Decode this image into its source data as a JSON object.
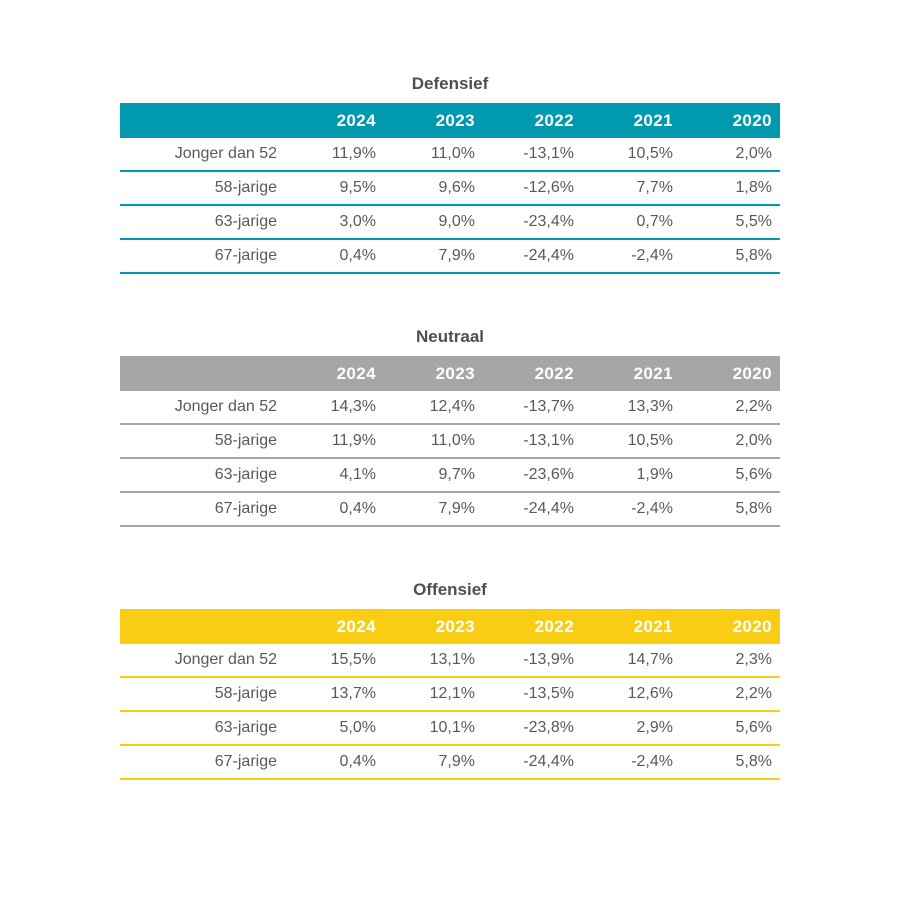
{
  "page": {
    "background_color": "#ffffff",
    "text_color": "#58595b",
    "header_text_color": "#ffffff"
  },
  "columns": [
    "2024",
    "2023",
    "2022",
    "2021",
    "2020"
  ],
  "tables": [
    {
      "title": "Defensief",
      "accent": "#0099ad",
      "rows": [
        {
          "label": "Jonger dan 52",
          "values": [
            "11,9%",
            "11,0%",
            "-13,1%",
            "10,5%",
            "2,0%"
          ]
        },
        {
          "label": "58-jarige",
          "values": [
            "9,5%",
            "9,6%",
            "-12,6%",
            "7,7%",
            "1,8%"
          ]
        },
        {
          "label": "63-jarige",
          "values": [
            "3,0%",
            "9,0%",
            "-23,4%",
            "0,7%",
            "5,5%"
          ]
        },
        {
          "label": "67-jarige",
          "values": [
            "0,4%",
            "7,9%",
            "-24,4%",
            "-2,4%",
            "5,8%"
          ]
        }
      ]
    },
    {
      "title": "Neutraal",
      "accent": "#a6a6a6",
      "rows": [
        {
          "label": "Jonger dan 52",
          "values": [
            "14,3%",
            "12,4%",
            "-13,7%",
            "13,3%",
            "2,2%"
          ]
        },
        {
          "label": "58-jarige",
          "values": [
            "11,9%",
            "11,0%",
            "-13,1%",
            "10,5%",
            "2,0%"
          ]
        },
        {
          "label": "63-jarige",
          "values": [
            "4,1%",
            "9,7%",
            "-23,6%",
            "1,9%",
            "5,6%"
          ]
        },
        {
          "label": "67-jarige",
          "values": [
            "0,4%",
            "7,9%",
            "-24,4%",
            "-2,4%",
            "5,8%"
          ]
        }
      ]
    },
    {
      "title": "Offensief",
      "accent": "#f8cd14",
      "rows": [
        {
          "label": "Jonger dan 52",
          "values": [
            "15,5%",
            "13,1%",
            "-13,9%",
            "14,7%",
            "2,3%"
          ]
        },
        {
          "label": "58-jarige",
          "values": [
            "13,7%",
            "12,1%",
            "-13,5%",
            "12,6%",
            "2,2%"
          ]
        },
        {
          "label": "63-jarige",
          "values": [
            "5,0%",
            "10,1%",
            "-23,8%",
            "2,9%",
            "5,6%"
          ]
        },
        {
          "label": "67-jarige",
          "values": [
            "0,4%",
            "7,9%",
            "-24,4%",
            "-2,4%",
            "5,8%"
          ]
        }
      ]
    }
  ],
  "chart_data": [
    {
      "type": "table",
      "title": "Defensief",
      "columns": [
        "2024",
        "2023",
        "2022",
        "2021",
        "2020"
      ],
      "row_labels": [
        "Jonger dan 52",
        "58-jarige",
        "63-jarige",
        "67-jarige"
      ],
      "values": [
        [
          11.9,
          11.0,
          -13.1,
          10.5,
          2.0
        ],
        [
          9.5,
          9.6,
          -12.6,
          7.7,
          1.8
        ],
        [
          3.0,
          9.0,
          -23.4,
          0.7,
          5.5
        ],
        [
          0.4,
          7.9,
          -24.4,
          -2.4,
          5.8
        ]
      ],
      "unit": "percent",
      "decimal_separator": ",",
      "accent_color": "#0099ad"
    },
    {
      "type": "table",
      "title": "Neutraal",
      "columns": [
        "2024",
        "2023",
        "2022",
        "2021",
        "2020"
      ],
      "row_labels": [
        "Jonger dan 52",
        "58-jarige",
        "63-jarige",
        "67-jarige"
      ],
      "values": [
        [
          14.3,
          12.4,
          -13.7,
          13.3,
          2.2
        ],
        [
          11.9,
          11.0,
          -13.1,
          10.5,
          2.0
        ],
        [
          4.1,
          9.7,
          -23.6,
          1.9,
          5.6
        ],
        [
          0.4,
          7.9,
          -24.4,
          -2.4,
          5.8
        ]
      ],
      "unit": "percent",
      "decimal_separator": ",",
      "accent_color": "#a6a6a6"
    },
    {
      "type": "table",
      "title": "Offensief",
      "columns": [
        "2024",
        "2023",
        "2022",
        "2021",
        "2020"
      ],
      "row_labels": [
        "Jonger dan 52",
        "58-jarige",
        "63-jarige",
        "67-jarige"
      ],
      "values": [
        [
          15.5,
          13.1,
          -13.9,
          14.7,
          2.3
        ],
        [
          13.7,
          12.1,
          -13.5,
          12.6,
          2.2
        ],
        [
          5.0,
          10.1,
          -23.8,
          2.9,
          5.6
        ],
        [
          0.4,
          7.9,
          -24.4,
          -2.4,
          5.8
        ]
      ],
      "unit": "percent",
      "decimal_separator": ",",
      "accent_color": "#f8cd14"
    }
  ]
}
